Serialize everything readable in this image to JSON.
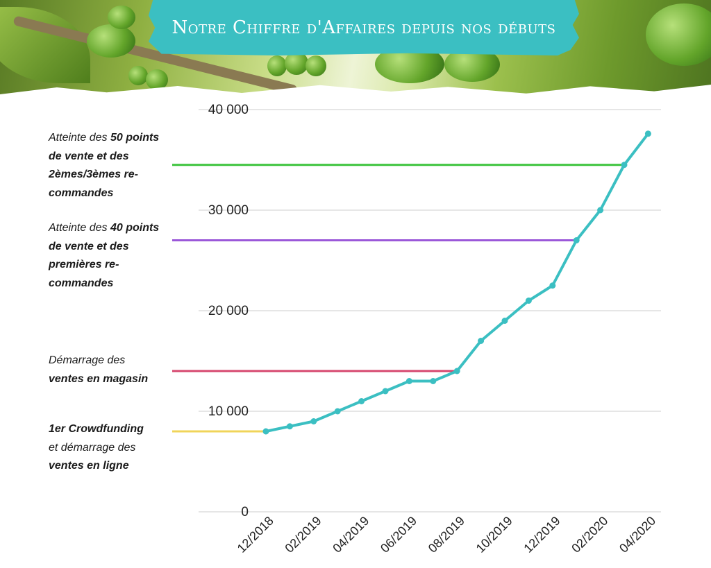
{
  "title": "Notre Chiffre d'Affaires depuis nos débuts",
  "chart_data": {
    "type": "line",
    "x": [
      "12/2018",
      "01/2019",
      "02/2019",
      "03/2019",
      "04/2019",
      "05/2019",
      "06/2019",
      "07/2019",
      "08/2019",
      "09/2019",
      "10/2019",
      "11/2019",
      "12/2019",
      "01/2020",
      "02/2020",
      "03/2020",
      "04/2020"
    ],
    "x_tick_labels": [
      "12/2018",
      "02/2019",
      "04/2019",
      "06/2019",
      "08/2019",
      "10/2019",
      "12/2019",
      "02/2020",
      "04/2020"
    ],
    "values": [
      8000,
      8500,
      9000,
      10000,
      11000,
      12000,
      13000,
      13000,
      14000,
      17000,
      19000,
      21000,
      22500,
      27000,
      30000,
      34500,
      37600
    ],
    "ylim": [
      0,
      40000
    ],
    "yticks": [
      0,
      10000,
      20000,
      30000,
      40000
    ],
    "ytick_labels": [
      "0",
      "10 000",
      "20 000",
      "30 000",
      "40 000"
    ],
    "grid": true,
    "line_color": "#3bbfc2",
    "reference_lines": [
      {
        "value": 8000,
        "color": "#f0d45a"
      },
      {
        "value": 14000,
        "color": "#d6476e"
      },
      {
        "value": 27000,
        "color": "#9b57d9"
      },
      {
        "value": 34500,
        "color": "#3cc43c"
      }
    ]
  },
  "annotations": [
    {
      "normal_before": "",
      "bold_1": "1er Crowdfunding",
      "normal_after": "et démarrage des",
      "bold_2": "ventes en ligne"
    },
    {
      "normal_before": "Démarrage des",
      "bold_1": "ventes en magasin",
      "normal_after": "",
      "bold_2": ""
    },
    {
      "normal_before": "Atteinte des",
      "bold_1": "40 points de vente et des premières re-commandes",
      "normal_after": "",
      "bold_2": ""
    },
    {
      "normal_before": "Atteinte des",
      "bold_1": "50 points de vente et des 2èmes/3èmes re-commandes",
      "normal_after": "",
      "bold_2": ""
    }
  ]
}
